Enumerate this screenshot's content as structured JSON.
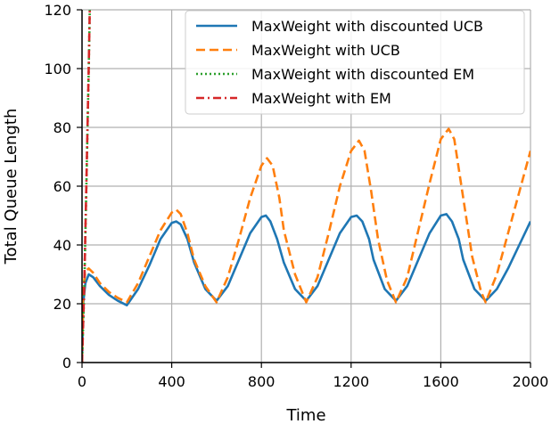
{
  "chart_data": {
    "type": "line",
    "xlabel": "Time",
    "ylabel": "Total Queue Length",
    "xlim": [
      0,
      2000
    ],
    "ylim": [
      0,
      120
    ],
    "xticks": [
      0,
      400,
      800,
      1200,
      1600,
      2000
    ],
    "yticks": [
      0,
      20,
      40,
      60,
      80,
      100,
      120
    ],
    "grid": true,
    "legend_position": "top-right",
    "series": [
      {
        "name": "MaxWeight with discounted UCB",
        "color": "#1f77b4",
        "dash": "solid",
        "x": [
          0,
          5,
          15,
          30,
          50,
          80,
          120,
          160,
          200,
          250,
          300,
          350,
          400,
          420,
          440,
          470,
          500,
          550,
          600,
          650,
          700,
          750,
          800,
          820,
          840,
          870,
          900,
          950,
          1000,
          1050,
          1100,
          1150,
          1200,
          1225,
          1250,
          1280,
          1300,
          1350,
          1400,
          1450,
          1500,
          1550,
          1600,
          1625,
          1650,
          1680,
          1700,
          1750,
          1800,
          1850,
          1900,
          1950,
          2000
        ],
        "values": [
          0,
          20,
          27,
          30,
          29,
          26,
          23,
          21,
          19.5,
          25,
          33,
          42,
          47.5,
          48,
          47,
          42,
          34,
          25,
          21,
          26,
          35,
          44,
          49.5,
          50,
          48,
          42,
          34,
          25,
          21,
          26,
          35,
          44,
          49.5,
          50,
          48,
          42,
          35,
          25,
          21,
          26,
          35,
          44,
          50,
          50.5,
          48,
          42,
          35,
          25,
          21,
          25,
          32,
          40,
          48
        ]
      },
      {
        "name": "MaxWeight with UCB",
        "color": "#ff7f0e",
        "dash": "dashed",
        "x": [
          0,
          5,
          15,
          30,
          50,
          80,
          120,
          160,
          200,
          250,
          300,
          350,
          400,
          420,
          440,
          470,
          500,
          550,
          600,
          650,
          700,
          750,
          800,
          825,
          850,
          880,
          900,
          950,
          1000,
          1050,
          1100,
          1150,
          1200,
          1235,
          1260,
          1290,
          1320,
          1360,
          1400,
          1450,
          1500,
          1550,
          1600,
          1635,
          1660,
          1700,
          1740,
          1780,
          1800,
          1850,
          1900,
          1950,
          2000
        ],
        "values": [
          0,
          25,
          31,
          32,
          30.5,
          27,
          24,
          22,
          20.5,
          27,
          36,
          45,
          51,
          52,
          50.5,
          44,
          35,
          26,
          20.5,
          29,
          42,
          56,
          67,
          69.5,
          67,
          56,
          45,
          30,
          20.5,
          29,
          44,
          60,
          72,
          75.5,
          72,
          58,
          42,
          28,
          20.5,
          29,
          45,
          61,
          76,
          79.5,
          76,
          56,
          36,
          24,
          20.5,
          30,
          44,
          58,
          72
        ]
      },
      {
        "name": "MaxWeight with discounted EM",
        "color": "#2ca02c",
        "dash": "dotted",
        "x": [
          0,
          10,
          20,
          30,
          35
        ],
        "values": [
          0,
          25,
          62,
          100,
          122
        ]
      },
      {
        "name": "MaxWeight with EM",
        "color": "#d62728",
        "dash": "dashdot",
        "x": [
          0,
          10,
          20,
          30,
          35
        ],
        "values": [
          0,
          26,
          63,
          101,
          122
        ]
      }
    ]
  }
}
